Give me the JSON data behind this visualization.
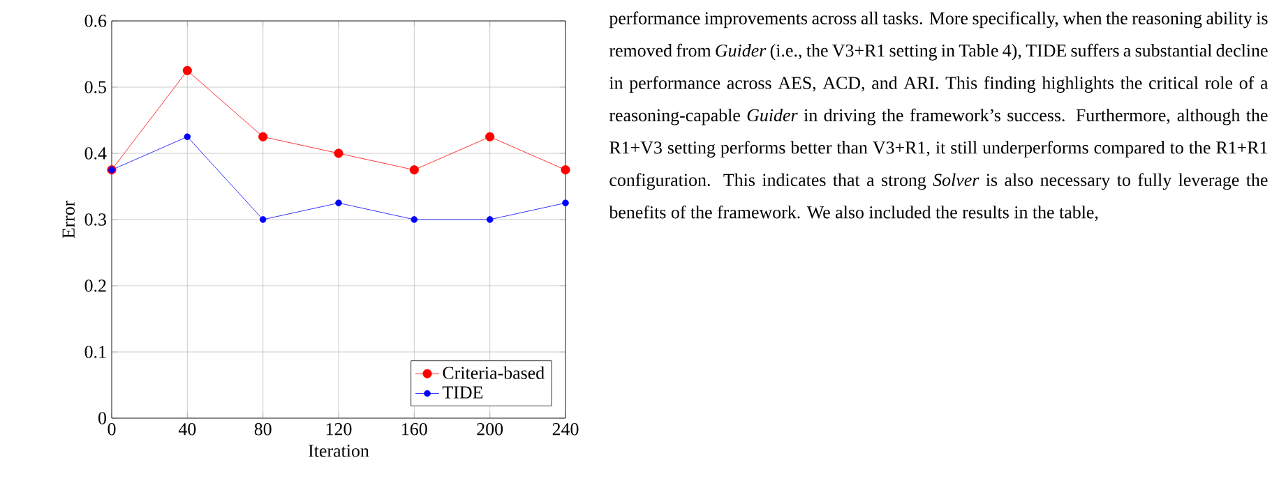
{
  "chart_data": {
    "type": "line",
    "xlabel": "Iteration",
    "ylabel": "Error",
    "x": [
      0,
      40,
      80,
      120,
      160,
      200,
      240
    ],
    "series": [
      {
        "name": "Criteria-based",
        "color": "#ff0000",
        "values": [
          0.375,
          0.525,
          0.425,
          0.4,
          0.375,
          0.425,
          0.375
        ]
      },
      {
        "name": "TIDE",
        "color": "#0000ff",
        "values": [
          0.375,
          0.425,
          0.3,
          0.325,
          0.3,
          0.3,
          0.325
        ]
      }
    ],
    "xlim": [
      0,
      240
    ],
    "xticks": [
      0,
      40,
      80,
      120,
      160,
      200,
      240
    ],
    "ylim": [
      0,
      0.6
    ],
    "yticks": [
      0,
      0.1,
      0.2,
      0.3,
      0.4,
      0.5,
      0.6
    ],
    "grid": true,
    "legend": "bottom right",
    "marker": "circle",
    "line_style": "solid",
    "annotations": [
      "performance improvements across all tasks. More specifically, when the reasoning ability is removed from *Guider* (i.e., the V3+R1 setting in Table 4), TIDE suffers a substantial decline in performance across AES, ACD, and ARI. This finding highlights the critical role of a reasoning-capable *Guider* in driving the framework’s success. Furthermore, although the R1+V3 setting performs better than V3+R1, it still underperforms compared to the R1+R1 configuration. This indicates that a strong *Solver* is also necessary to fully leverage the benefits of the framework. We also included the results in the table,"
    ]
  }
}
